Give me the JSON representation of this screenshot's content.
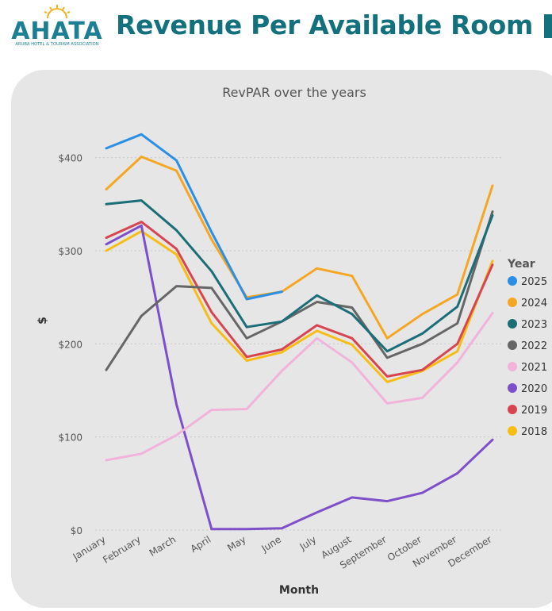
{
  "header": {
    "logo_text": "AHATA",
    "logo_subtitle": "ARUBA HOTEL & TOURISM ASSOCIATION",
    "title": "Revenue Per Available Room",
    "title_color": "#13707d"
  },
  "chart_data": {
    "type": "line",
    "title": "RevPAR over the years",
    "xlabel": "Month",
    "ylabel": "$",
    "ylim": [
      0,
      450
    ],
    "yticks": [
      0,
      100,
      200,
      300,
      400
    ],
    "ytick_labels": [
      "$0",
      "$100",
      "$200",
      "$300",
      "$400"
    ],
    "grid": true,
    "legend_title": "Year",
    "legend_position": "right",
    "categories": [
      "January",
      "February",
      "March",
      "April",
      "May",
      "June",
      "July",
      "August",
      "September",
      "October",
      "November",
      "December"
    ],
    "series": [
      {
        "name": "2025",
        "color": "#2b8fe6",
        "values": [
          410,
          425,
          397,
          320,
          248,
          256,
          null,
          null,
          null,
          null,
          null,
          null
        ]
      },
      {
        "name": "2024",
        "color": "#f5a623",
        "values": [
          366,
          401,
          386,
          312,
          250,
          256,
          281,
          273,
          206,
          232,
          253,
          370
        ]
      },
      {
        "name": "2023",
        "color": "#1b6e78",
        "values": [
          350,
          354,
          322,
          278,
          218,
          224,
          252,
          232,
          192,
          211,
          240,
          338
        ]
      },
      {
        "name": "2022",
        "color": "#666666",
        "values": [
          172,
          230,
          262,
          260,
          206,
          224,
          245,
          239,
          185,
          200,
          222,
          342
        ]
      },
      {
        "name": "2021",
        "color": "#f1b3d9",
        "values": [
          75,
          82,
          102,
          129,
          130,
          171,
          206,
          180,
          136,
          142,
          180,
          233
        ]
      },
      {
        "name": "2020",
        "color": "#7d4fc9",
        "values": [
          307,
          327,
          135,
          1,
          1,
          2,
          19,
          35,
          31,
          40,
          61,
          97
        ]
      },
      {
        "name": "2019",
        "color": "#d64550",
        "values": [
          314,
          331,
          302,
          234,
          186,
          194,
          220,
          206,
          165,
          172,
          200,
          285
        ]
      },
      {
        "name": "2018",
        "color": "#f7bd15",
        "values": [
          300,
          321,
          296,
          222,
          182,
          191,
          214,
          199,
          159,
          171,
          192,
          289
        ]
      }
    ]
  }
}
